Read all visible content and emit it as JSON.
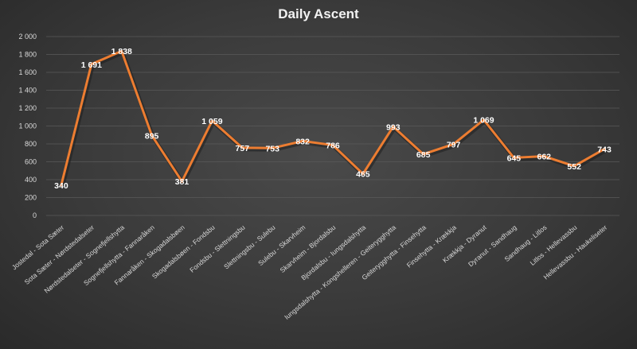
{
  "chart_data": {
    "type": "line",
    "title": "Daily Ascent",
    "xlabel": "",
    "ylabel": "",
    "ylim": [
      0,
      2000
    ],
    "yticks": [
      "0",
      "200",
      "400",
      "600",
      "800",
      "1 000",
      "1 200",
      "1 400",
      "1 600",
      "1 800",
      "2 000"
    ],
    "grid": true,
    "legend": "none",
    "line_color": "#ed7d31",
    "categories": [
      "Jostedal - Sota Sæter",
      "Sota Sæter - Nørdstedalseter",
      "Nørdstedalseter - Sognefjellshytta",
      "Sognefjellshytta - Fannaråken",
      "Fannaråken - Skogadalsbøen",
      "Skogadalsbøen - Fondsbu",
      "Fondsbu - Slettningsbu",
      "Slettningsbu - Sulebu",
      "Sulebu - Skarvheim",
      "Skarvheim - Bjordalsbu",
      "Bjordalsbu - Iungsdalshytta",
      "Iungsdalshytta - Kongshelleren - Geiterygghytta",
      "Geiterygghytta - Finsehytta",
      "Finsehytta - Krækkja",
      "Krækkja - Dyranut",
      "Dyranut - Sandhaug",
      "Sandhaug - Litlos",
      "Litlos - Hellevassbu",
      "Hellevassbu - Haukeliseter"
    ],
    "values": [
      340,
      1691,
      1838,
      895,
      381,
      1059,
      757,
      753,
      832,
      786,
      465,
      993,
      685,
      797,
      1069,
      645,
      662,
      552,
      743
    ],
    "value_labels": [
      "340",
      "1 691",
      "1 838",
      "895",
      "381",
      "1 059",
      "757",
      "753",
      "832",
      "786",
      "465",
      "993",
      "685",
      "797",
      "1 069",
      "645",
      "662",
      "552",
      "743"
    ]
  }
}
